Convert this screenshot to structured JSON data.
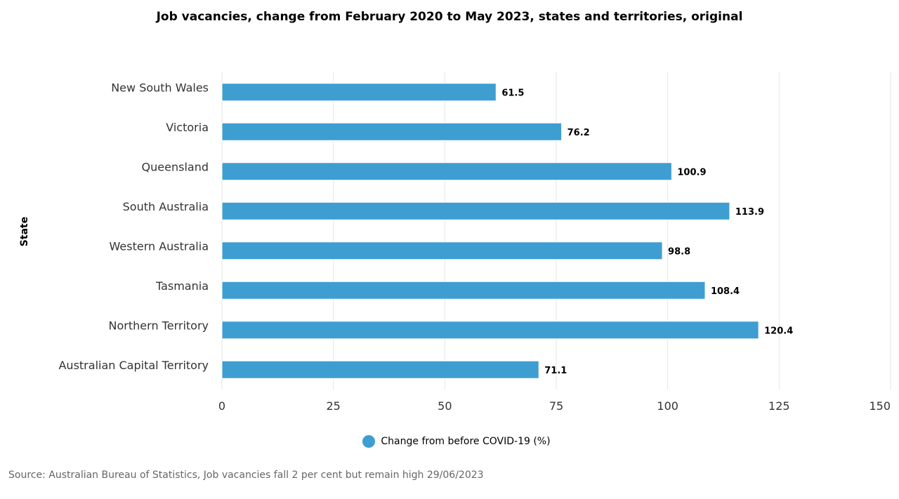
{
  "chart_data": {
    "type": "bar",
    "orientation": "horizontal",
    "title": "Job vacancies, change from February 2020 to May 2023, states and territories, original",
    "ylabel": "State",
    "xlabel": "",
    "categories": [
      "New South Wales",
      "Victoria",
      "Queensland",
      "South Australia",
      "Western Australia",
      "Tasmania",
      "Northern Territory",
      "Australian Capital Territory"
    ],
    "series": [
      {
        "name": "Change from before COVID-19 (%)",
        "values": [
          61.5,
          76.2,
          100.9,
          113.9,
          98.8,
          108.4,
          120.4,
          71.1
        ]
      }
    ],
    "xlim": [
      0,
      150
    ],
    "xticks": [
      "0",
      "25",
      "50",
      "75",
      "100",
      "125",
      "150"
    ],
    "grid": true,
    "legend_position": "bottom",
    "colors": {
      "bar": "#3e9ed2",
      "grid": "#e6e6e6",
      "axis_label": "#333333"
    }
  },
  "source": "Source: Australian Bureau of Statistics, Job vacancies fall 2 per cent but remain high 29/06/2023"
}
